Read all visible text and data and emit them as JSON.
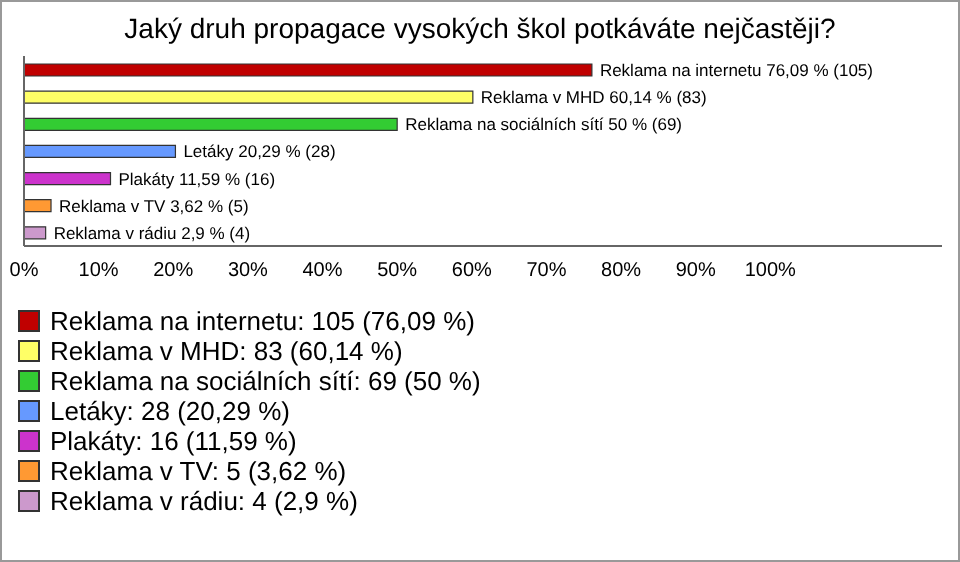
{
  "chart_data": {
    "type": "bar",
    "orientation": "horizontal",
    "stacked": true,
    "title": "Jaký druh propagace vysokých škol potkáváte nejčastěji?",
    "categories": [
      null,
      null,
      null,
      null,
      null,
      null,
      null
    ],
    "series": [
      {
        "name": "Reklama na internetu: 105 (76,09 %)",
        "color": "#c00000",
        "values": [
          76.09,
          null,
          null,
          null,
          null,
          null,
          null
        ],
        "value_labels": [
          "Reklama na internetu 76,09 % (105)",
          null,
          null,
          null,
          null,
          null,
          null
        ]
      },
      {
        "name": "Reklama v MHD: 83 (60,14 %)",
        "color": "#ffff66",
        "values": [
          null,
          60.14,
          null,
          null,
          null,
          null,
          null
        ],
        "value_labels": [
          null,
          "Reklama v MHD 60,14 % (83)",
          null,
          null,
          null,
          null,
          null
        ]
      },
      {
        "name": "Reklama na sociálních sítí: 69 (50 %)",
        "color": "#33cc33",
        "values": [
          null,
          null,
          50,
          null,
          null,
          null,
          null
        ],
        "value_labels": [
          null,
          null,
          "Reklama na sociálních sítí 50 % (69)",
          null,
          null,
          null,
          null
        ]
      },
      {
        "name": "Letáky: 28 (20,29 %)",
        "color": "#6699ff",
        "values": [
          null,
          null,
          null,
          20.29,
          null,
          null,
          null
        ],
        "value_labels": [
          null,
          null,
          null,
          "Letáky 20,29 % (28)",
          null,
          null,
          null
        ]
      },
      {
        "name": "Plakáty: 16 (11,59 %)",
        "color": "#cc33cc",
        "values": [
          null,
          null,
          null,
          null,
          11.59,
          null,
          null
        ],
        "value_labels": [
          null,
          null,
          null,
          null,
          "Plakáty 11,59 % (16)",
          null,
          null
        ]
      },
      {
        "name": "Reklama v TV: 5 (3,62 %)",
        "color": "#ff9933",
        "values": [
          null,
          null,
          null,
          null,
          null,
          3.62,
          null
        ],
        "value_labels": [
          null,
          null,
          null,
          null,
          null,
          "Reklama v TV 3,62 % (5)",
          null
        ]
      },
      {
        "name": "Reklama v rádiu: 4 (2,9 %)",
        "color": "#cc99cc",
        "values": [
          null,
          null,
          null,
          null,
          null,
          null,
          2.9
        ],
        "value_labels": [
          null,
          null,
          null,
          null,
          null,
          null,
          "Reklama v rádiu 2,9 % (4)"
        ]
      }
    ],
    "xlim": [
      0,
      123
    ],
    "xticks": [
      {
        "value": 0,
        "label": "0%"
      },
      {
        "value": 10,
        "label": "10%"
      },
      {
        "value": 20,
        "label": "20%"
      },
      {
        "value": 30,
        "label": "30%"
      },
      {
        "value": 40,
        "label": "40%"
      },
      {
        "value": 50,
        "label": "50%"
      },
      {
        "value": 60,
        "label": "60%"
      },
      {
        "value": 70,
        "label": "70%"
      },
      {
        "value": 80,
        "label": "80%"
      },
      {
        "value": 90,
        "label": "90%"
      },
      {
        "value": 100,
        "label": "100%"
      }
    ],
    "tick_labels": "x",
    "legend": "bottom"
  }
}
